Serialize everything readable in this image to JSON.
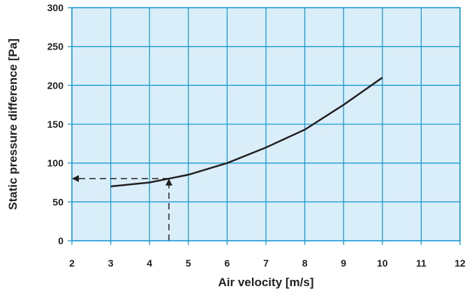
{
  "chart_data": {
    "type": "line",
    "title": "",
    "xlabel": "Air velocity [m/s]",
    "ylabel": "Static pressure difference [Pa]",
    "xlim": [
      2,
      12
    ],
    "ylim": [
      0,
      300
    ],
    "x_ticks": [
      2,
      3,
      4,
      5,
      6,
      7,
      8,
      9,
      10,
      11,
      12
    ],
    "y_ticks": [
      0,
      50,
      100,
      150,
      200,
      250,
      300
    ],
    "grid": true,
    "plot_background": "#d9eef8",
    "grid_color": "#1a9ad6",
    "line_color": "#231f20",
    "series": [
      {
        "x": [
          3,
          4,
          5,
          6,
          7,
          8,
          9,
          10
        ],
        "y": [
          70,
          75,
          85,
          100,
          120,
          143,
          175,
          210
        ]
      }
    ],
    "annotation": {
      "style": "dashed-arrows",
      "x": 4.5,
      "y": 80
    }
  }
}
